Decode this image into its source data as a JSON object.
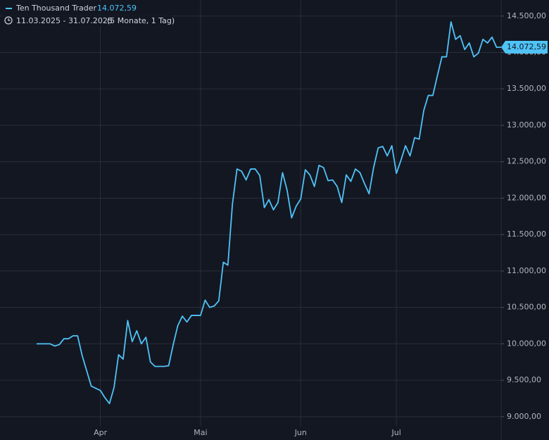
{
  "chart_data": {
    "type": "line",
    "date_range": "11.03.2025 - 31.07.2025",
    "period": "(5 Monate, 1 Tag)",
    "categories": [
      null,
      null,
      null,
      null,
      null,
      null,
      null,
      null,
      null,
      null,
      null,
      null,
      null,
      null,
      "Apr",
      null,
      null,
      null,
      null,
      null,
      null,
      null,
      null,
      null,
      null,
      null,
      null,
      null,
      null,
      null,
      null,
      null,
      null,
      null,
      null,
      null,
      "Mai",
      null,
      null,
      null,
      null,
      null,
      null,
      null,
      null,
      null,
      null,
      null,
      null,
      null,
      null,
      null,
      null,
      null,
      null,
      null,
      null,
      null,
      "Jun",
      null,
      null,
      null,
      null,
      null,
      null,
      null,
      null,
      null,
      null,
      null,
      null,
      null,
      null,
      null,
      null,
      null,
      null,
      null,
      null,
      "Jul",
      null,
      null,
      null,
      null,
      null,
      null,
      null,
      null,
      null,
      null,
      null,
      null,
      null,
      null,
      null,
      null,
      null,
      null,
      null,
      null,
      null,
      null,
      null
    ],
    "series": [
      {
        "name": "Ten Thousand Trader",
        "color": "#4fc3f7",
        "values": [
          10000,
          10000,
          10000,
          10000,
          9970,
          9990,
          10070,
          10070,
          10110,
          10110,
          9840,
          9630,
          9420,
          9390,
          9360,
          9260,
          9180,
          9400,
          9850,
          9790,
          10320,
          10030,
          10180,
          10000,
          10090,
          9750,
          9690,
          9690,
          9690,
          9700,
          9990,
          10250,
          10380,
          10300,
          10390,
          10390,
          10390,
          10600,
          10500,
          10520,
          10590,
          11120,
          11080,
          11920,
          12400,
          12370,
          12250,
          12400,
          12400,
          12310,
          11870,
          11980,
          11840,
          11940,
          12350,
          12110,
          11730,
          11890,
          11990,
          12390,
          12320,
          12160,
          12450,
          12420,
          12240,
          12250,
          12160,
          11940,
          12320,
          12230,
          12400,
          12350,
          12200,
          12060,
          12420,
          12690,
          12710,
          12580,
          12720,
          12340,
          12520,
          12720,
          12580,
          12830,
          12810,
          13200,
          13410,
          13410,
          13680,
          13940,
          13940,
          14420,
          14180,
          14230,
          14040,
          14130,
          13940,
          13990,
          14180,
          14130,
          14210,
          14070,
          14072.59
        ],
        "value_labels": [
          null,
          null,
          null,
          null,
          null,
          null,
          null,
          null,
          null,
          null,
          null,
          null,
          null,
          null,
          null,
          null,
          null,
          null,
          null,
          null,
          null,
          null,
          null,
          null,
          null,
          null,
          null,
          null,
          null,
          null,
          null,
          null,
          null,
          null,
          null,
          null,
          null,
          null,
          null,
          null,
          null,
          null,
          null,
          null,
          null,
          null,
          null,
          null,
          null,
          null,
          null,
          null,
          null,
          null,
          null,
          null,
          null,
          null,
          null,
          null,
          null,
          null,
          null,
          null,
          null,
          null,
          null,
          null,
          null,
          null,
          null,
          null,
          null,
          null,
          null,
          null,
          null,
          null,
          null,
          null,
          null,
          null,
          null,
          null,
          null,
          null,
          null,
          null,
          null,
          null,
          null,
          null,
          null,
          null,
          null,
          null,
          null,
          null,
          null,
          null,
          null,
          null,
          "14.072,59"
        ]
      }
    ],
    "ylim": [
      8680,
      14720
    ],
    "yticks": [
      {
        "value": 9000,
        "label": "9.000,00"
      },
      {
        "value": 9500,
        "label": "9.500,00"
      },
      {
        "value": 10000,
        "label": "10.000,00"
      },
      {
        "value": 10500,
        "label": "10.500,00"
      },
      {
        "value": 11000,
        "label": "11.000,00"
      },
      {
        "value": 11500,
        "label": "11.500,00"
      },
      {
        "value": 12000,
        "label": "12.000,00"
      },
      {
        "value": 12500,
        "label": "12.500,00"
      },
      {
        "value": 13000,
        "label": "13.000,00"
      },
      {
        "value": 13500,
        "label": "13.500,00"
      },
      {
        "value": 14000,
        "label": "14.000,00"
      },
      {
        "value": 14500,
        "label": "14.500,00"
      }
    ],
    "grid": true
  }
}
